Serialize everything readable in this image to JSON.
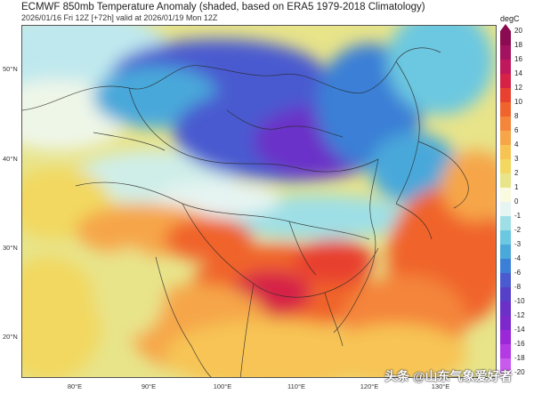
{
  "title": "ECMWF 850mb Temperature Anomaly (shaded, based on ERA5 1979-2018 Climatology)",
  "subtitle": "2026/01/16 Fri 12Z [+72h] valid at 2026/01/19 Mon 12Z",
  "colorbar": {
    "unit": "degC",
    "ticks": [
      "20",
      "18",
      "16",
      "14",
      "12",
      "10",
      "8",
      "6",
      "4",
      "3",
      "2",
      "1",
      "0",
      "-1",
      "-2",
      "-3",
      "-4",
      "-6",
      "-8",
      "-10",
      "-12",
      "-14",
      "-16",
      "-18",
      "-20"
    ],
    "colors": [
      "#8b0a50",
      "#a3125e",
      "#c0185d",
      "#d62246",
      "#e8412f",
      "#f0632c",
      "#f4853a",
      "#f6a648",
      "#f7c454",
      "#f2d860",
      "#e8e48a",
      "#fafae0",
      "#e6f4f2",
      "#9edfe6",
      "#6cc8e0",
      "#4aa8da",
      "#3b7fd6",
      "#4a5ad0",
      "#5640c8",
      "#6a30c8",
      "#7c28cc",
      "#9a28d8",
      "#b43ae4",
      "#c85aee"
    ],
    "colors_order": "top-to-bottom"
  },
  "lat_labels": [
    "50°N",
    "40°N",
    "30°N",
    "20°N"
  ],
  "lon_labels": [
    "80°E",
    "90°E",
    "100°E",
    "110°E",
    "120°E",
    "130°E"
  ],
  "watermark": "头条 @山东气象爱好者"
}
